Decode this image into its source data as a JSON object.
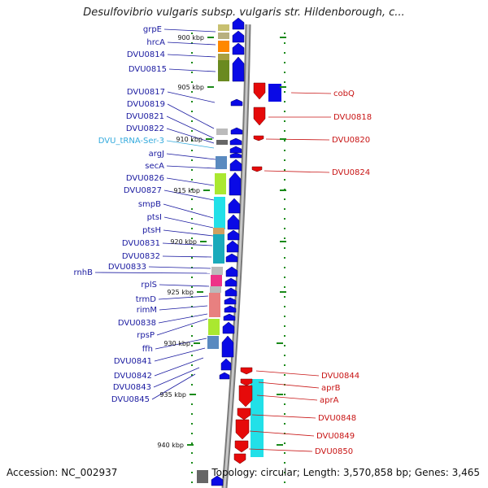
{
  "title": "Desulfovibrio vulgaris subsp. vulgaris str. Hildenborough, c...",
  "footer": {
    "accession": "Accession: NC_002937",
    "stats": "Topology: circular; Length: 3,570,858 bp; Genes: 3,465"
  },
  "colors": {
    "forward_gene": "#0a0ae6",
    "reverse_gene": "#e60a0a",
    "backbone": "#9a9a9a",
    "tick": "#1a8a1a",
    "forward_label": "#1a1aa0",
    "reverse_label": "#c81414",
    "trna_label": "#33aadd"
  },
  "ruler": {
    "ticks": [
      "900 kbp",
      "905 kbp",
      "910 kbp",
      "915 kbp",
      "920 kbp",
      "925 kbp",
      "930 kbp",
      "935 kbp",
      "940 kbp"
    ]
  },
  "forward_labels": [
    "grpE",
    "hrcA",
    "DVU0814",
    "DVU0815",
    "DVU0817",
    "DVU0819",
    "DVU0821",
    "DVU0822",
    "DVU_tRNA-Ser-3",
    "argJ",
    "secA",
    "DVU0826",
    "DVU0827",
    "smpB",
    "ptsI",
    "ptsH",
    "DVU0831",
    "DVU0832",
    "DVU0833",
    "rnhB",
    "rplS",
    "trmD",
    "rimM",
    "DVU0838",
    "rpsP",
    "ffh",
    "DVU0841",
    "DVU0842",
    "DVU0843",
    "DVU0845"
  ],
  "reverse_labels": [
    "cobQ",
    "DVU0818",
    "DVU0820",
    "DVU0824",
    "DVU0844",
    "aprB",
    "aprA",
    "DVU0848",
    "DVU0849",
    "DVU0850"
  ]
}
